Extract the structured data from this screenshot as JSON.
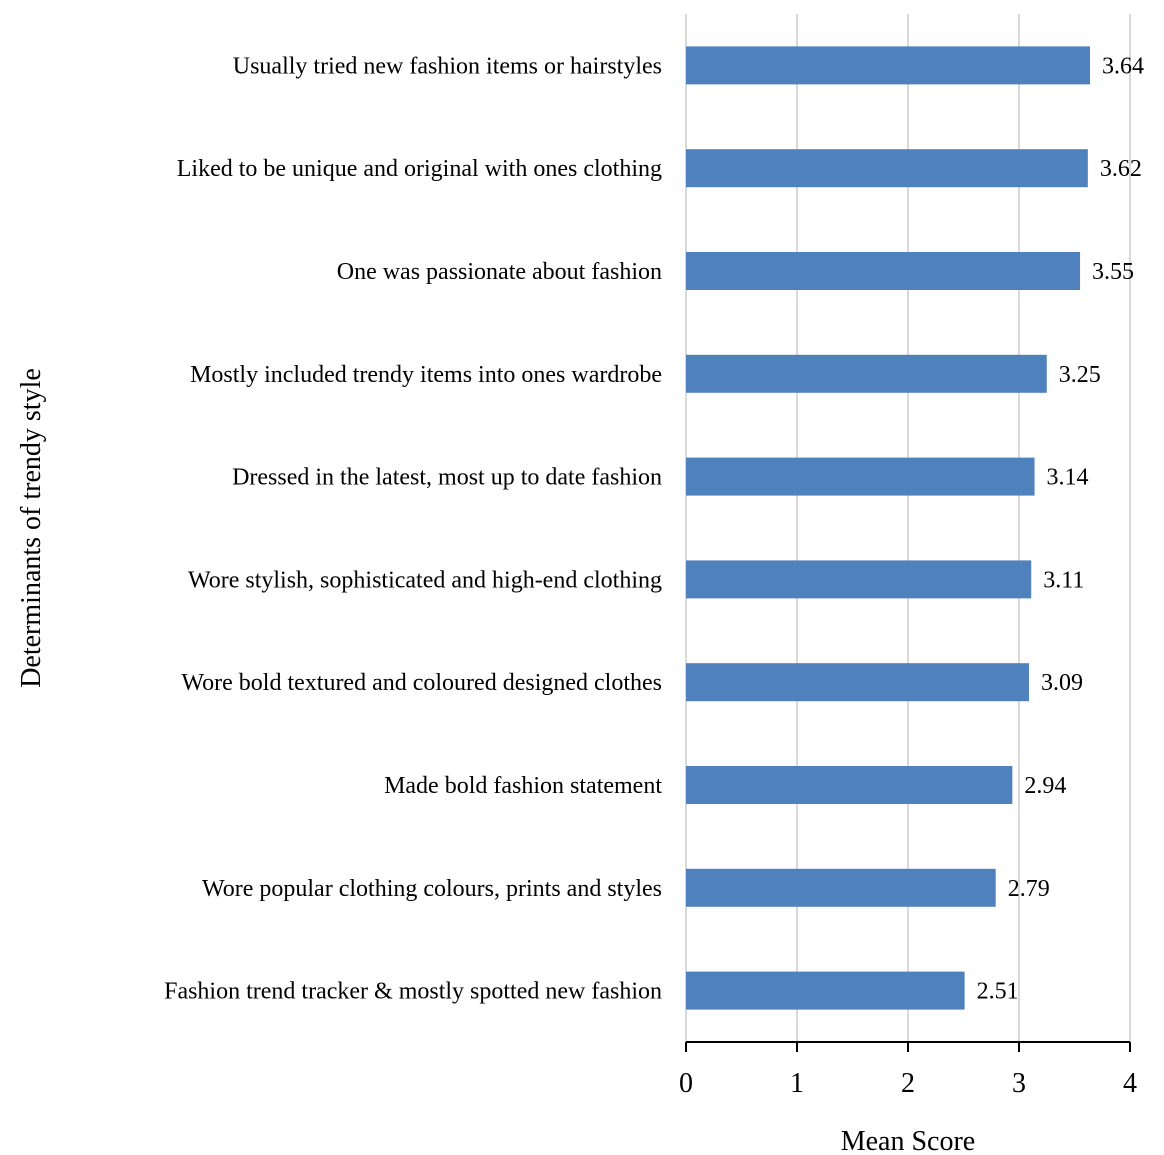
{
  "chart_data": {
    "type": "bar",
    "orientation": "horizontal",
    "categories": [
      "Usually tried new fashion items or hairstyles ",
      "Liked to be unique and original with ones clothing",
      "One was passionate about fashion ",
      "Mostly included trendy items into ones wardrobe",
      "Dressed in the latest, most up to date fashion",
      "Wore stylish, sophisticated and high-end clothing",
      "Wore bold textured and coloured designed clothes ",
      "Made bold fashion statement",
      "Wore popular clothing colours, prints and styles",
      "Fashion trend tracker & mostly spotted new fashion"
    ],
    "values": [
      3.64,
      3.62,
      3.55,
      3.25,
      3.14,
      3.11,
      3.09,
      2.94,
      2.79,
      2.51
    ],
    "value_labels": [
      "3.64",
      "3.62",
      "3.55",
      "3.25",
      "3.14",
      "3.11",
      "3.09",
      "2.94",
      "2.79",
      "2.51"
    ],
    "title": "",
    "xlabel": "Mean Score",
    "ylabel": "Determinants of trendy style",
    "xlim": [
      0,
      4
    ],
    "xticks": [
      0,
      1,
      2,
      3,
      4
    ],
    "xtick_labels": [
      "0",
      "1",
      "2",
      "3",
      "4"
    ],
    "grid": "vertical",
    "legend": "none",
    "bar_color": "#4f81bd",
    "gridline_color": "#d9d9d9",
    "axis_color": "#000000"
  }
}
